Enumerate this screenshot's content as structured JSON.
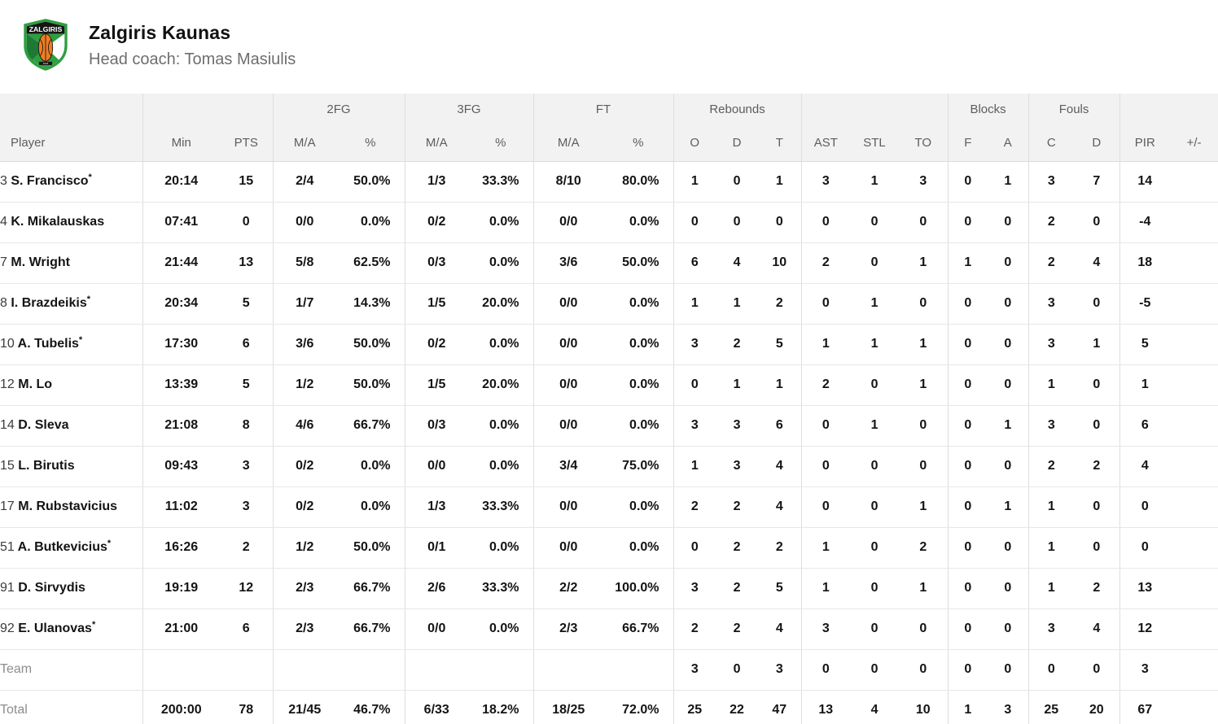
{
  "team_header": {
    "name": "Zalgiris Kaunas",
    "coach_label": "Head coach: Tomas Masiulis",
    "logo": {
      "text": "ZALGIRIS",
      "year": "1944",
      "green": "#2f9e41",
      "dark_green": "#1d7a35",
      "orange": "#ef7d23",
      "black": "#161616",
      "white": "#ffffff"
    }
  },
  "table": {
    "group_headers": {
      "fg2": "2FG",
      "fg3": "3FG",
      "ft": "FT",
      "rebounds": "Rebounds",
      "blocks": "Blocks",
      "fouls": "Fouls"
    },
    "columns": [
      "Player",
      "Min",
      "PTS",
      "M/A",
      "%",
      "M/A",
      "%",
      "M/A",
      "%",
      "O",
      "D",
      "T",
      "AST",
      "STL",
      "TO",
      "F",
      "A",
      "C",
      "D",
      "PIR",
      "+/-"
    ],
    "rows": [
      {
        "number": "3",
        "name": "S. Francisco",
        "starter": true,
        "stats": [
          "20:14",
          "15",
          "2/4",
          "50.0%",
          "1/3",
          "33.3%",
          "8/10",
          "80.0%",
          "1",
          "0",
          "1",
          "3",
          "1",
          "3",
          "0",
          "1",
          "3",
          "7",
          "14",
          ""
        ]
      },
      {
        "number": "4",
        "name": "K. Mikalauskas",
        "starter": false,
        "stats": [
          "07:41",
          "0",
          "0/0",
          "0.0%",
          "0/2",
          "0.0%",
          "0/0",
          "0.0%",
          "0",
          "0",
          "0",
          "0",
          "0",
          "0",
          "0",
          "0",
          "2",
          "0",
          "-4",
          ""
        ]
      },
      {
        "number": "7",
        "name": "M. Wright",
        "starter": false,
        "stats": [
          "21:44",
          "13",
          "5/8",
          "62.5%",
          "0/3",
          "0.0%",
          "3/6",
          "50.0%",
          "6",
          "4",
          "10",
          "2",
          "0",
          "1",
          "1",
          "0",
          "2",
          "4",
          "18",
          ""
        ]
      },
      {
        "number": "8",
        "name": "I. Brazdeikis",
        "starter": true,
        "stats": [
          "20:34",
          "5",
          "1/7",
          "14.3%",
          "1/5",
          "20.0%",
          "0/0",
          "0.0%",
          "1",
          "1",
          "2",
          "0",
          "1",
          "0",
          "0",
          "0",
          "3",
          "0",
          "-5",
          ""
        ]
      },
      {
        "number": "10",
        "name": "A. Tubelis",
        "starter": true,
        "stats": [
          "17:30",
          "6",
          "3/6",
          "50.0%",
          "0/2",
          "0.0%",
          "0/0",
          "0.0%",
          "3",
          "2",
          "5",
          "1",
          "1",
          "1",
          "0",
          "0",
          "3",
          "1",
          "5",
          ""
        ]
      },
      {
        "number": "12",
        "name": "M. Lo",
        "starter": false,
        "stats": [
          "13:39",
          "5",
          "1/2",
          "50.0%",
          "1/5",
          "20.0%",
          "0/0",
          "0.0%",
          "0",
          "1",
          "1",
          "2",
          "0",
          "1",
          "0",
          "0",
          "1",
          "0",
          "1",
          ""
        ]
      },
      {
        "number": "14",
        "name": "D. Sleva",
        "starter": false,
        "stats": [
          "21:08",
          "8",
          "4/6",
          "66.7%",
          "0/3",
          "0.0%",
          "0/0",
          "0.0%",
          "3",
          "3",
          "6",
          "0",
          "1",
          "0",
          "0",
          "1",
          "3",
          "0",
          "6",
          ""
        ]
      },
      {
        "number": "15",
        "name": "L. Birutis",
        "starter": false,
        "stats": [
          "09:43",
          "3",
          "0/2",
          "0.0%",
          "0/0",
          "0.0%",
          "3/4",
          "75.0%",
          "1",
          "3",
          "4",
          "0",
          "0",
          "0",
          "0",
          "0",
          "2",
          "2",
          "4",
          ""
        ]
      },
      {
        "number": "17",
        "name": "M. Rubstavicius",
        "starter": false,
        "stats": [
          "11:02",
          "3",
          "0/2",
          "0.0%",
          "1/3",
          "33.3%",
          "0/0",
          "0.0%",
          "2",
          "2",
          "4",
          "0",
          "0",
          "1",
          "0",
          "1",
          "1",
          "0",
          "0",
          ""
        ]
      },
      {
        "number": "51",
        "name": "A. Butkevicius",
        "starter": true,
        "stats": [
          "16:26",
          "2",
          "1/2",
          "50.0%",
          "0/1",
          "0.0%",
          "0/0",
          "0.0%",
          "0",
          "2",
          "2",
          "1",
          "0",
          "2",
          "0",
          "0",
          "1",
          "0",
          "0",
          ""
        ]
      },
      {
        "number": "91",
        "name": "D. Sirvydis",
        "starter": false,
        "stats": [
          "19:19",
          "12",
          "2/3",
          "66.7%",
          "2/6",
          "33.3%",
          "2/2",
          "100.0%",
          "3",
          "2",
          "5",
          "1",
          "0",
          "1",
          "0",
          "0",
          "1",
          "2",
          "13",
          ""
        ]
      },
      {
        "number": "92",
        "name": "E. Ulanovas",
        "starter": true,
        "stats": [
          "21:00",
          "6",
          "2/3",
          "66.7%",
          "0/0",
          "0.0%",
          "2/3",
          "66.7%",
          "2",
          "2",
          "4",
          "3",
          "0",
          "0",
          "0",
          "0",
          "3",
          "4",
          "12",
          ""
        ]
      }
    ],
    "team_row": {
      "label": "Team",
      "stats": [
        "",
        "",
        "",
        "",
        "",
        "",
        "",
        "",
        "3",
        "0",
        "3",
        "0",
        "0",
        "0",
        "0",
        "0",
        "0",
        "0",
        "3",
        ""
      ]
    },
    "total_row": {
      "label": "Total",
      "stats": [
        "200:00",
        "78",
        "21/45",
        "46.7%",
        "6/33",
        "18.2%",
        "18/25",
        "72.0%",
        "25",
        "22",
        "47",
        "13",
        "4",
        "10",
        "1",
        "3",
        "25",
        "20",
        "67",
        ""
      ]
    }
  },
  "colors": {
    "header_bg": "#f2f2f2",
    "header_text": "#5d5d5d",
    "row_border": "#e7e7e7",
    "column_divider": "#dedede",
    "body_text": "#141414",
    "muted_text": "#8d8d8d"
  }
}
